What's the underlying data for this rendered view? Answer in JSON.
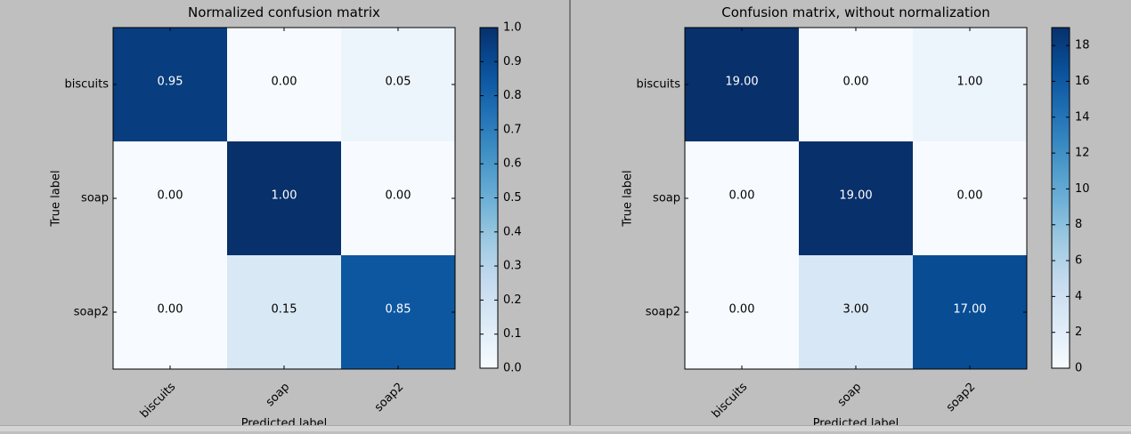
{
  "chart_data": [
    {
      "type": "heatmap",
      "title": "Normalized confusion matrix",
      "xlabel": "Predicted label",
      "ylabel": "True label",
      "x_categories": [
        "biscuits",
        "soap",
        "soap2"
      ],
      "y_categories": [
        "biscuits",
        "soap",
        "soap2"
      ],
      "values": [
        [
          0.95,
          0.0,
          0.05
        ],
        [
          0.0,
          1.0,
          0.0
        ],
        [
          0.0,
          0.15,
          0.85
        ]
      ],
      "cell_labels": [
        [
          "0.95",
          "0.00",
          "0.05"
        ],
        [
          "0.00",
          "1.00",
          "0.00"
        ],
        [
          "0.00",
          "0.15",
          "0.85"
        ]
      ],
      "colormap": "Blues",
      "vmin": 0,
      "vmax": 1.0,
      "colorbar_ticks": [
        "0.0",
        "0.1",
        "0.2",
        "0.3",
        "0.4",
        "0.5",
        "0.6",
        "0.7",
        "0.8",
        "0.9",
        "1.0"
      ],
      "colorbar_tick_values": [
        0,
        0.1,
        0.2,
        0.3,
        0.4,
        0.5,
        0.6,
        0.7,
        0.8,
        0.9,
        1.0
      ]
    },
    {
      "type": "heatmap",
      "title": "Confusion matrix, without normalization",
      "xlabel": "Predicted label",
      "ylabel": "True label",
      "x_categories": [
        "biscuits",
        "soap",
        "soap2"
      ],
      "y_categories": [
        "biscuits",
        "soap",
        "soap2"
      ],
      "values": [
        [
          19,
          0,
          1
        ],
        [
          0,
          19,
          0
        ],
        [
          0,
          3,
          17
        ]
      ],
      "cell_labels": [
        [
          "19.00",
          "0.00",
          "1.00"
        ],
        [
          "0.00",
          "19.00",
          "0.00"
        ],
        [
          "0.00",
          "3.00",
          "17.00"
        ]
      ],
      "colormap": "Blues",
      "vmin": 0,
      "vmax": 19,
      "colorbar_ticks": [
        "0",
        "2",
        "4",
        "6",
        "8",
        "10",
        "12",
        "14",
        "16",
        "18"
      ],
      "colorbar_tick_values": [
        0,
        2,
        4,
        6,
        8,
        10,
        12,
        14,
        16,
        18
      ]
    }
  ],
  "colors": {
    "background": "#bfbfbf",
    "axes_face": "#ffffff",
    "text_dark": "#000000",
    "text_light": "#ffffff"
  }
}
